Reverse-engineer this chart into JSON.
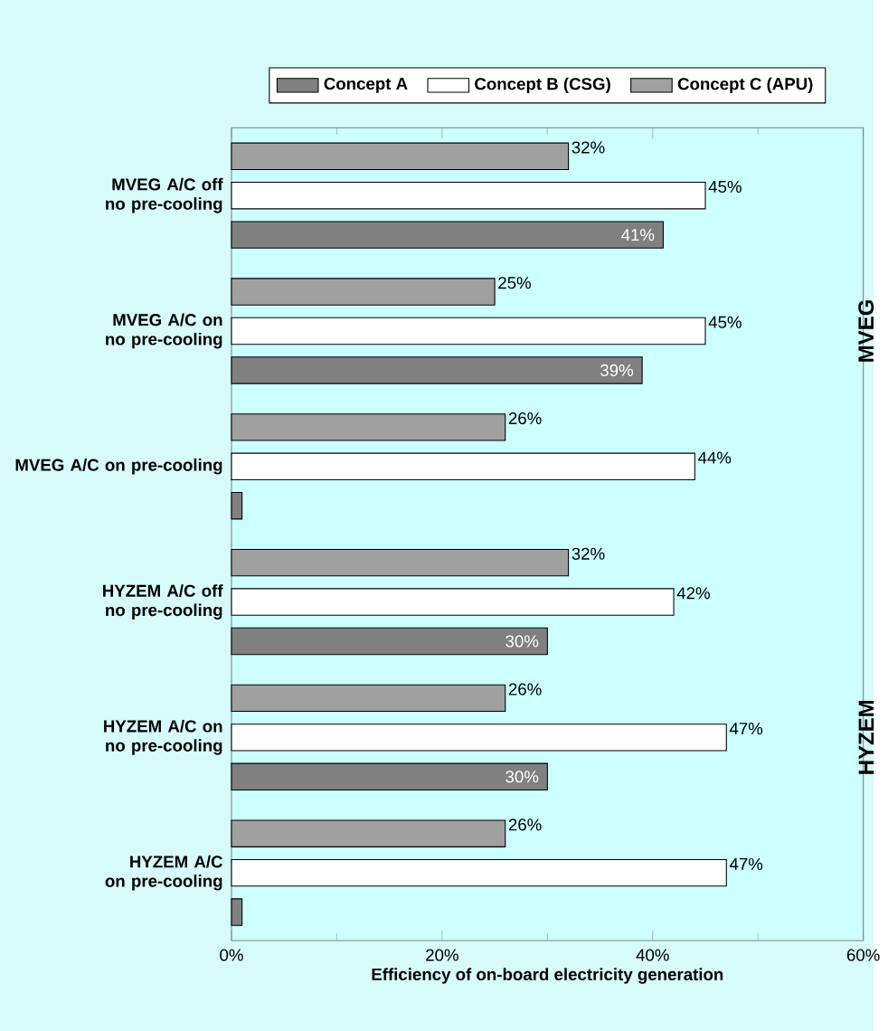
{
  "chart_data": {
    "type": "bar",
    "orientation": "horizontal",
    "categories": [
      "MVEG A/C off no pre-cooling",
      "MVEG A/C on no pre-cooling",
      "MVEG A/C on pre-cooling",
      "HYZEM A/C off no pre-cooling",
      "HYZEM A/C on no pre-cooling",
      "HYZEM A/C on pre-cooling"
    ],
    "series": [
      {
        "name": "Concept A",
        "color": "#808080",
        "values": [
          41,
          39,
          1,
          30,
          30,
          1
        ],
        "value_labels": [
          "41%",
          "39%",
          null,
          "30%",
          "30%",
          null
        ]
      },
      {
        "name": "Concept B (CSG)",
        "color": "#ffffff",
        "values": [
          45,
          45,
          44,
          42,
          47,
          47
        ],
        "value_labels": [
          "45%",
          "45%",
          "44%",
          "42%",
          "47%",
          "47%"
        ]
      },
      {
        "name": "Concept C (APU)",
        "color": "#a0a0a0",
        "values": [
          32,
          25,
          26,
          32,
          26,
          26
        ],
        "value_labels": [
          "32%",
          "25%",
          "26%",
          "32%",
          "26%",
          "26%"
        ]
      }
    ],
    "xlim": [
      0,
      60
    ],
    "xticks": [
      {
        "value": 0,
        "label": "0%"
      },
      {
        "value": 20,
        "label": "20%"
      },
      {
        "value": 40,
        "label": "40%"
      },
      {
        "value": 60,
        "label": "60%"
      }
    ],
    "xlabel": "Efficiency of on-board electricity generation",
    "legend": "top",
    "annotations": [
      "MVEG",
      "HYZEM"
    ]
  }
}
